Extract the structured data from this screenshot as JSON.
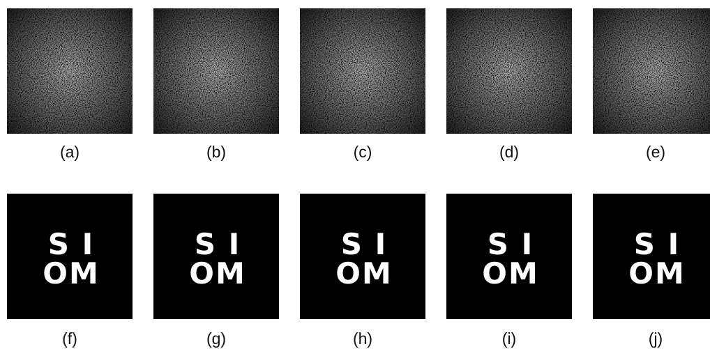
{
  "top_row": [
    {
      "label": "(a)"
    },
    {
      "label": "(b)"
    },
    {
      "label": "(c)"
    },
    {
      "label": "(d)"
    },
    {
      "label": "(e)"
    }
  ],
  "bottom_row": [
    {
      "label": "(f)",
      "text_lines": [
        "S I",
        "OM"
      ]
    },
    {
      "label": "(g)",
      "text_lines": [
        "S I",
        "OM"
      ]
    },
    {
      "label": "(h)",
      "text_lines": [
        "S I",
        "OM"
      ]
    },
    {
      "label": "(i)",
      "text_lines": [
        "S I",
        "OM"
      ]
    },
    {
      "label": "(j)",
      "text_lines": [
        "S I",
        "OM"
      ]
    }
  ]
}
